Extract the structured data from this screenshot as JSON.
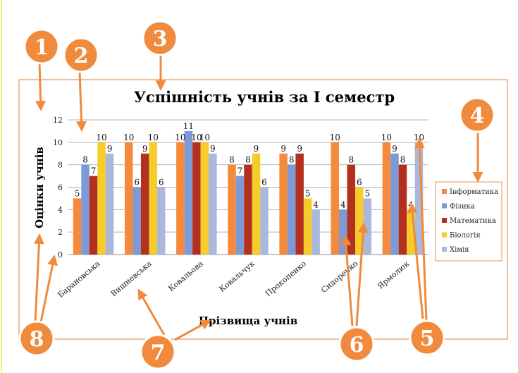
{
  "chart_data": {
    "type": "bar",
    "title": "Успішність учнів за I семестр",
    "xlabel": "Прізвища учнів",
    "ylabel": "Оцінки учнів",
    "ylim": [
      0,
      12
    ],
    "yticks": [
      0,
      2,
      4,
      6,
      8,
      10,
      12
    ],
    "grid": true,
    "legend_position": "right",
    "categories": [
      "Барановська",
      "Вишневська",
      "Ковальова",
      "Ковальчук",
      "Прокопенко",
      "Сидоренко",
      "Ярмолюк"
    ],
    "series": [
      {
        "name": "Інформатика",
        "color": "#f58a3d",
        "values": [
          5,
          10,
          10,
          8,
          9,
          10,
          10
        ]
      },
      {
        "name": "Фізика",
        "color": "#7d9ad6",
        "values": [
          8,
          6,
          11,
          7,
          8,
          4,
          9
        ]
      },
      {
        "name": "Математика",
        "color": "#b3301f",
        "values": [
          7,
          9,
          10,
          8,
          9,
          8,
          8
        ]
      },
      {
        "name": "Біологія",
        "color": "#f5cc2a",
        "values": [
          10,
          10,
          10,
          9,
          5,
          6,
          4
        ]
      },
      {
        "name": "Хімія",
        "color": "#a9b8dc",
        "values": [
          9,
          6,
          9,
          6,
          4,
          5,
          10
        ]
      }
    ]
  },
  "callouts": [
    "1",
    "2",
    "3",
    "4",
    "5",
    "6",
    "7",
    "8"
  ],
  "colors": {
    "callout_fill": "#f08a3c",
    "callout_border": "#ffffff",
    "arrow": "#f08a3c",
    "chart_border": "#e89255",
    "gridline": "#b5b5b5",
    "left_rule": "#e7f27a"
  }
}
